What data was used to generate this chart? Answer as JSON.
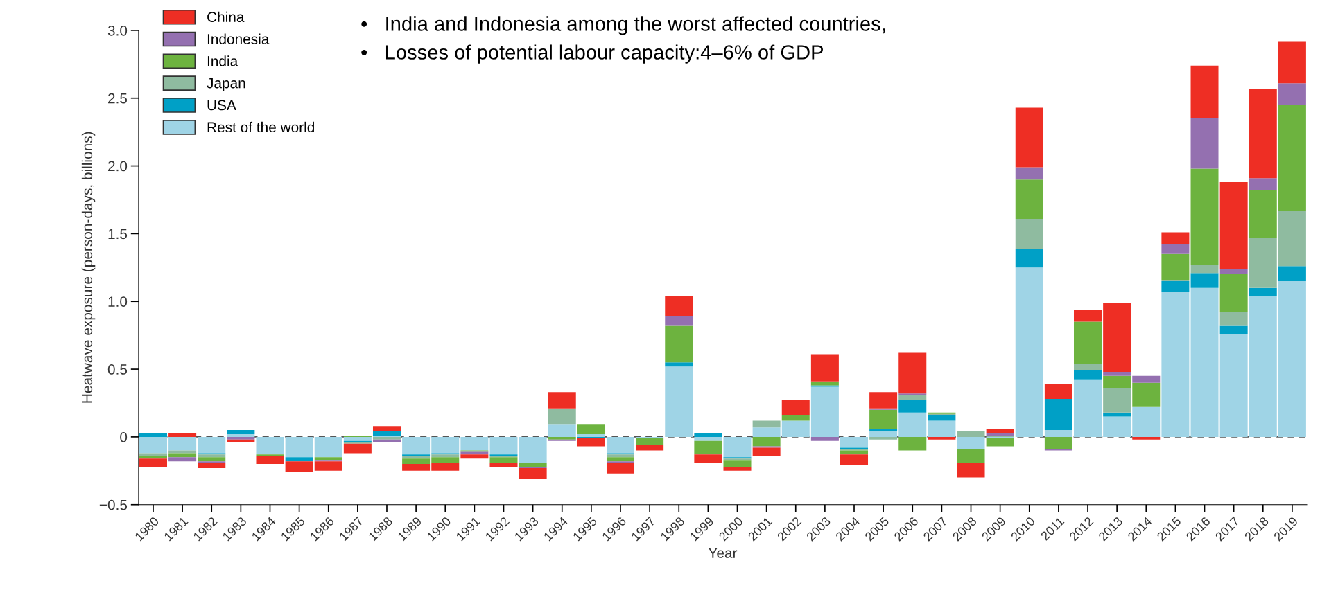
{
  "chart_data": {
    "type": "bar",
    "stacked": true,
    "xlabel": "Year",
    "ylabel": "Heatwave exposure (person-days, billions)",
    "categories": [
      "1980",
      "1981",
      "1982",
      "1983",
      "1984",
      "1985",
      "1986",
      "1987",
      "1988",
      "1989",
      "1990",
      "1991",
      "1992",
      "1993",
      "1994",
      "1995",
      "1996",
      "1997",
      "1998",
      "1999",
      "2000",
      "2001",
      "2002",
      "2003",
      "2004",
      "2005",
      "2006",
      "2007",
      "2008",
      "2009",
      "2010",
      "2011",
      "2012",
      "2013",
      "2014",
      "2015",
      "2016",
      "2017",
      "2018",
      "2019"
    ],
    "series": [
      {
        "name": "Rest of the world",
        "color": "#9fd4e6",
        "values": [
          -0.12,
          -0.1,
          -0.12,
          0.02,
          -0.13,
          -0.15,
          -0.15,
          -0.03,
          0.01,
          -0.13,
          -0.12,
          -0.1,
          -0.13,
          -0.19,
          0.09,
          0.02,
          -0.12,
          -0.01,
          0.52,
          -0.03,
          -0.15,
          0.07,
          0.12,
          0.37,
          -0.08,
          0.04,
          0.18,
          0.12,
          -0.09,
          -0.01,
          1.25,
          0.05,
          0.42,
          0.15,
          0.22,
          1.07,
          1.1,
          0.76,
          1.04,
          1.15
        ]
      },
      {
        "name": "USA",
        "color": "#00a0c6",
        "values": [
          0.03,
          0,
          -0.01,
          0.03,
          0,
          -0.03,
          0,
          -0.01,
          0.03,
          -0.01,
          -0.01,
          0,
          -0.01,
          0,
          0,
          -0.01,
          -0.01,
          0,
          0.03,
          0.03,
          -0.01,
          0,
          0,
          0.01,
          -0.01,
          0.02,
          0.09,
          0.04,
          0,
          0,
          0.14,
          0.23,
          0.07,
          0.03,
          0,
          0.08,
          0.11,
          0.06,
          0.06,
          0.11
        ]
      },
      {
        "name": "Japan",
        "color": "#8fbba0",
        "values": [
          -0.02,
          -0.02,
          -0.02,
          0,
          0,
          0,
          0,
          -0.01,
          -0.02,
          -0.02,
          -0.02,
          0,
          -0.01,
          0,
          0.12,
          0,
          -0.02,
          0,
          0,
          0,
          -0.01,
          0.05,
          0,
          0,
          -0.01,
          -0.02,
          0.04,
          0.01,
          0.04,
          0.01,
          0.22,
          0,
          0.05,
          0.18,
          0,
          0.01,
          0.06,
          0.1,
          0.37,
          0.41
        ]
      },
      {
        "name": "India",
        "color": "#6db33f",
        "values": [
          -0.02,
          -0.03,
          -0.03,
          0,
          -0.01,
          0,
          -0.02,
          0.01,
          0,
          -0.04,
          -0.04,
          -0.01,
          -0.04,
          -0.03,
          -0.02,
          0.07,
          -0.03,
          -0.05,
          0.27,
          -0.1,
          -0.05,
          -0.07,
          0.04,
          0.03,
          -0.03,
          0.14,
          -0.1,
          0.01,
          -0.1,
          -0.06,
          0.29,
          -0.09,
          0.31,
          0.09,
          0.18,
          0.19,
          0.71,
          0.28,
          0.35,
          0.78
        ]
      },
      {
        "name": "Indonesia",
        "color": "#9470b0",
        "values": [
          0,
          -0.03,
          -0.01,
          -0.02,
          0,
          0,
          -0.01,
          0,
          -0.02,
          0,
          0,
          -0.02,
          0,
          -0.01,
          -0.01,
          0,
          -0.01,
          0,
          0.07,
          0,
          0,
          -0.01,
          0,
          -0.03,
          0,
          0.01,
          0.01,
          0,
          0,
          0.02,
          0.09,
          -0.01,
          0,
          0.03,
          0.05,
          0.07,
          0.37,
          0.04,
          0.09,
          0.16
        ]
      },
      {
        "name": "China",
        "color": "#ee2e24",
        "values": [
          -0.06,
          0.03,
          -0.04,
          -0.02,
          -0.06,
          -0.08,
          -0.07,
          -0.07,
          0.04,
          -0.05,
          -0.06,
          -0.03,
          -0.03,
          -0.08,
          0.12,
          -0.06,
          -0.08,
          -0.04,
          0.15,
          -0.06,
          -0.03,
          -0.06,
          0.11,
          0.2,
          -0.08,
          0.12,
          0.3,
          -0.02,
          -0.11,
          0.03,
          0.44,
          0.11,
          0.09,
          0.51,
          -0.02,
          0.09,
          0.39,
          0.64,
          0.66,
          0.31
        ]
      }
    ],
    "ylim": [
      -0.5,
      3.0
    ],
    "yticks": [
      {
        "value": -0.5,
        "label": "−0.5"
      },
      0,
      {
        "value": 0.5,
        "label": "0.5"
      },
      {
        "value": 1.0,
        "label": "1.0"
      },
      {
        "value": 1.5,
        "label": "1.5"
      },
      {
        "value": 2.0,
        "label": "2.0"
      },
      {
        "value": 2.5,
        "label": "2.5"
      },
      {
        "value": 3.0,
        "label": "3.0"
      }
    ],
    "ref_lines": [
      {
        "axis": "y",
        "value": 0,
        "color": "#555555",
        "line_style": "dashed"
      }
    ],
    "legend": "top left",
    "grid": false,
    "annotations": [
      "•   India and Indonesia among the worst affected countries,",
      "•   Losses of potential labour capacity:4–6% of GDP"
    ]
  }
}
